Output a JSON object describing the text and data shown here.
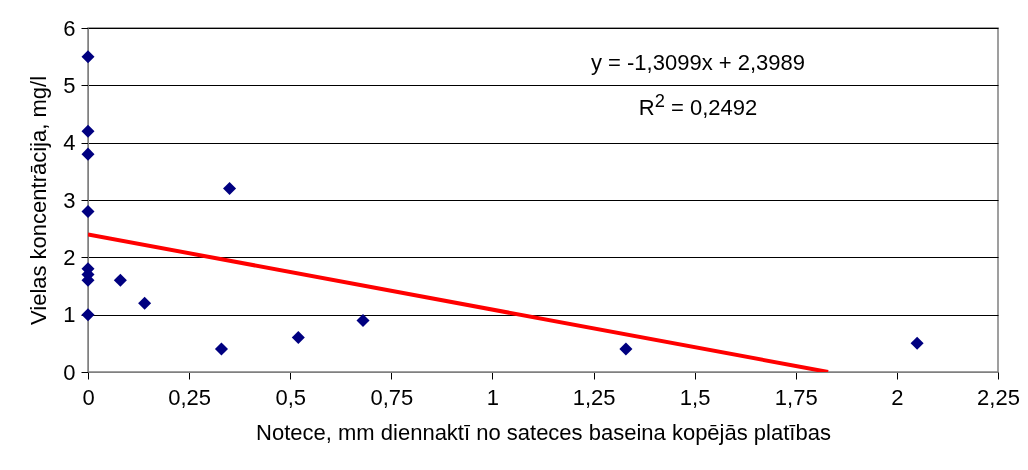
{
  "chart_data": {
    "type": "scatter",
    "xlabel": "Notece, mm diennaktī no sateces baseina kopējās platības",
    "ylabel": "Vielas koncentrācija, mg/l",
    "xlim": [
      0,
      2.25
    ],
    "xticks": [
      0,
      {
        "value": 0.25,
        "label": "0,25"
      },
      {
        "value": 0.5,
        "label": "0,5"
      },
      {
        "value": 0.75,
        "label": "0,75"
      },
      1,
      {
        "value": 1.25,
        "label": "1,25"
      },
      {
        "value": 1.5,
        "label": "1,5"
      },
      {
        "value": 1.75,
        "label": "1,75"
      },
      2,
      {
        "value": 2.25,
        "label": "2,25"
      }
    ],
    "ylim": [
      0,
      6
    ],
    "yticks": [
      0,
      1,
      2,
      3,
      4,
      5,
      6
    ],
    "grid": "y",
    "series": [
      {
        "marker": "diamond",
        "color": "#000080",
        "x": [
          0,
          0,
          0,
          0,
          0,
          0,
          0,
          0,
          0.08,
          0.14,
          0.33,
          0.35,
          0.52,
          0.68,
          1.33,
          2.05
        ],
        "values": [
          5.5,
          4.2,
          3.8,
          2.8,
          1.8,
          1.7,
          1.6,
          1.0,
          1.6,
          1.2,
          0.4,
          3.2,
          0.6,
          0.9,
          0.4,
          0.5
        ]
      },
      {
        "type": "line",
        "color": "#ff0000",
        "x": [
          0,
          1.83
        ],
        "values": [
          2.4,
          0
        ]
      }
    ],
    "annotations": [
      "y = -1,3099x + 2,3989",
      "R$^{2}$ = 0,2492"
    ]
  }
}
